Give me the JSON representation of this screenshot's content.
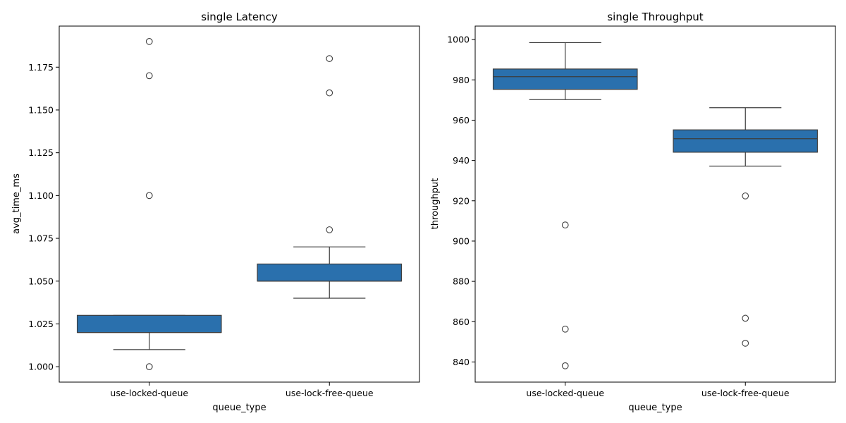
{
  "chart_data": [
    {
      "type": "box",
      "title": "single Latency",
      "xlabel": "queue_type",
      "ylabel": "avg_time_ms",
      "categories": [
        "use-locked-queue",
        "use-lock-free-queue"
      ],
      "ylim": [
        0.991,
        1.199
      ],
      "yticks": [
        1.0,
        1.025,
        1.05,
        1.075,
        1.1,
        1.125,
        1.15,
        1.175
      ],
      "ytick_labels": [
        "1.000",
        "1.025",
        "1.050",
        "1.075",
        "1.100",
        "1.125",
        "1.150",
        "1.175"
      ],
      "color": "#2a70ad",
      "boxes": [
        {
          "category": "use-locked-queue",
          "whisker_low": 1.01,
          "q1": 1.02,
          "median": 1.02,
          "q3": 1.03,
          "whisker_high": 1.03,
          "outliers": [
            1.0,
            1.1,
            1.17,
            1.19
          ]
        },
        {
          "category": "use-lock-free-queue",
          "whisker_low": 1.04,
          "q1": 1.05,
          "median": 1.05,
          "q3": 1.06,
          "whisker_high": 1.07,
          "outliers": [
            1.08,
            1.16,
            1.18
          ]
        }
      ]
    },
    {
      "type": "box",
      "title": "single Throughput",
      "xlabel": "queue_type",
      "ylabel": "throughput",
      "categories": [
        "use-locked-queue",
        "use-lock-free-queue"
      ],
      "ylim": [
        830,
        1006.7
      ],
      "yticks": [
        840,
        860,
        880,
        900,
        920,
        940,
        960,
        980,
        1000
      ],
      "ytick_labels": [
        "840",
        "860",
        "880",
        "900",
        "920",
        "940",
        "960",
        "980",
        "1000"
      ],
      "color": "#2a70ad",
      "boxes": [
        {
          "category": "use-locked-queue",
          "whisker_low": 970.2,
          "q1": 975.3,
          "median": 981.6,
          "q3": 985.4,
          "whisker_high": 998.5,
          "outliers": [
            908.0,
            856.3,
            838.1
          ]
        },
        {
          "category": "use-lock-free-queue",
          "whisker_low": 937.2,
          "q1": 944.1,
          "median": 950.8,
          "q3": 955.2,
          "whisker_high": 966.2,
          "outliers": [
            922.4,
            861.7,
            849.3
          ]
        }
      ]
    }
  ]
}
